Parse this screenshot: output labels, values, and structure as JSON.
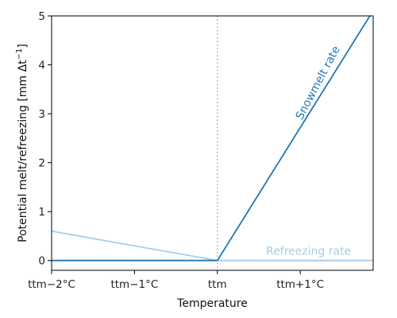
{
  "chart_data": {
    "type": "line",
    "xlabel": "Temperature",
    "ylabel": "Potential melt/refreezing [mm Δt⁻¹]",
    "xlim": [
      -2,
      1.88
    ],
    "ylim": [
      -0.2,
      5
    ],
    "grid": false,
    "x_ticks": [
      {
        "value": -2,
        "label": "ttm−2°C"
      },
      {
        "value": -1,
        "label": "ttm−1°C"
      },
      {
        "value": 0,
        "label": "ttm"
      },
      {
        "value": 1,
        "label": "ttm+1°C"
      }
    ],
    "y_ticks": [
      0,
      1,
      2,
      3,
      4,
      5
    ],
    "vline": {
      "x": 0,
      "style": "dotted",
      "color": "#aaaaaa"
    },
    "series": [
      {
        "name": "Snowmelt rate",
        "color": "#1f77b4",
        "x": [
          -2,
          0,
          1.84
        ],
        "y": [
          0,
          0,
          5
        ]
      },
      {
        "name": "Refreezing rate",
        "color": "#a6cee3",
        "x": [
          -2,
          0,
          1.88
        ],
        "y": [
          0.6,
          0,
          0
        ]
      }
    ],
    "annotations": [
      {
        "text": "Snowmelt rate",
        "color": "#1f77b4",
        "x": 1.25,
        "y": 3.6,
        "rotation": -62
      },
      {
        "text": "Refreezing rate",
        "color": "#a6cee3",
        "x": 1.1,
        "y": 0.12,
        "rotation": 0
      }
    ]
  }
}
